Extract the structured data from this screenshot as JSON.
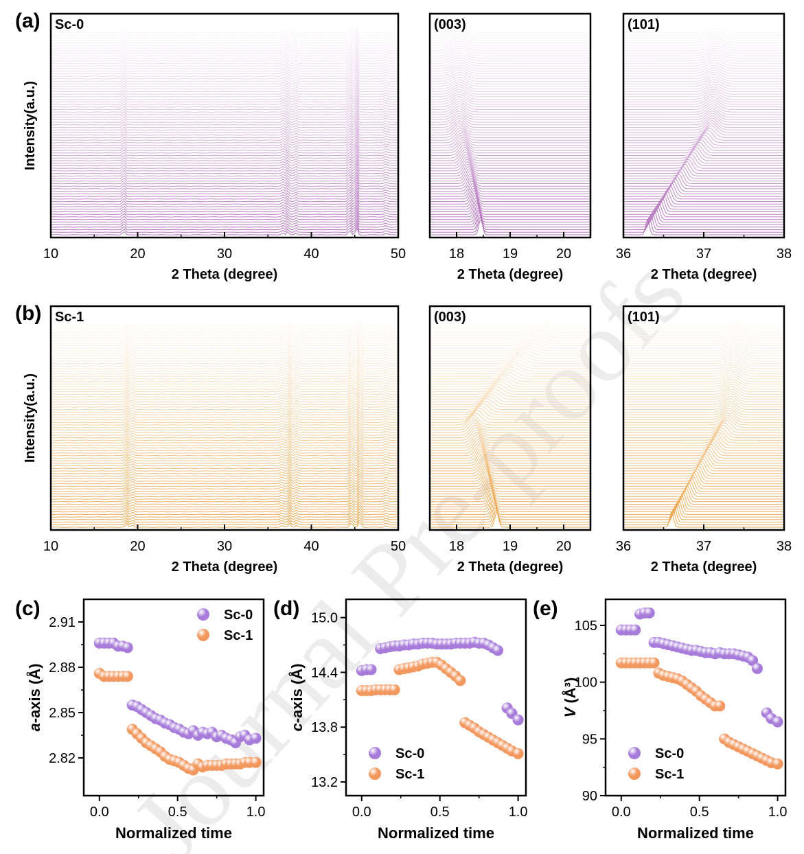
{
  "colors": {
    "sc0_line": "#a559b0",
    "sc1_line": "#e8962e",
    "sc0_marker": "#a77bd9",
    "sc1_marker": "#f2975e"
  },
  "watermark": "Journal Pre-proofs",
  "chart_data": [
    {
      "id": "a-full",
      "type": "line",
      "panel_letter": "(a)",
      "sample": "Sc-0",
      "title": "",
      "xlabel": "2 Theta (degree)",
      "ylabel": "Intensity(a.u.)",
      "xlim": [
        10,
        50
      ],
      "xticks": [
        "10",
        "20",
        "30",
        "40",
        "50"
      ],
      "peaks": [
        [
          18.4,
          6
        ],
        [
          36.7,
          3
        ],
        [
          37.3,
          5
        ],
        [
          38.2,
          3
        ],
        [
          44.4,
          8
        ],
        [
          45.2,
          10
        ],
        [
          48.6,
          3
        ]
      ],
      "n_traces": 80
    },
    {
      "id": "a-003",
      "type": "line",
      "panel_letter": "",
      "sample": "(003)",
      "xlabel": "2 Theta (degree)",
      "ylabel": "",
      "xlim": [
        17.5,
        20.5
      ],
      "xticks": [
        "18",
        "19",
        "20"
      ],
      "peak_start": 18.45,
      "peak_mid": 18.05,
      "peak_end": 18.05,
      "n_traces": 80
    },
    {
      "id": "a-101",
      "type": "line",
      "panel_letter": "",
      "sample": "(101)",
      "xlabel": "2 Theta (degree)",
      "ylabel": "",
      "xlim": [
        36,
        38
      ],
      "xticks": [
        "36",
        "37",
        "38"
      ],
      "peak_start": 36.3,
      "peak_mid": 37.1,
      "peak_end": 37.15,
      "n_traces": 80
    },
    {
      "id": "b-full",
      "type": "line",
      "panel_letter": "(b)",
      "sample": "Sc-1",
      "xlabel": "2 Theta (degree)",
      "ylabel": "Intensity(a.u.)",
      "xlim": [
        10,
        50
      ],
      "xticks": [
        "10",
        "20",
        "30",
        "40",
        "50"
      ],
      "peaks": [
        [
          18.7,
          6
        ],
        [
          19.4,
          4
        ],
        [
          36.6,
          3
        ],
        [
          37.5,
          6
        ],
        [
          38.3,
          3
        ],
        [
          44.6,
          8
        ],
        [
          45.6,
          10
        ],
        [
          48.6,
          3
        ]
      ],
      "n_traces": 80
    },
    {
      "id": "b-003",
      "type": "line",
      "panel_letter": "",
      "sample": "(003)",
      "xlabel": "2 Theta (degree)",
      "ylabel": "",
      "xlim": [
        17.5,
        20.5
      ],
      "xticks": [
        "18",
        "19",
        "20"
      ],
      "peak_start": 18.75,
      "peak_mid": 18.3,
      "peak_end": 19.7,
      "n_traces": 80
    },
    {
      "id": "b-101",
      "type": "line",
      "panel_letter": "",
      "sample": "(101)",
      "xlabel": "2 Theta (degree)",
      "ylabel": "",
      "xlim": [
        36,
        38
      ],
      "xticks": [
        "36",
        "37",
        "38"
      ],
      "peak_start": 36.6,
      "peak_mid": 37.3,
      "peak_end": 37.45,
      "n_traces": 80
    },
    {
      "id": "c",
      "type": "scatter",
      "panel_letter": "(c)",
      "xlabel": "Normalized time",
      "ylabel_italic": "a",
      "ylabel_rest": "-axis (Å)",
      "xlim": [
        -0.1,
        1.05
      ],
      "ylim": [
        2.795,
        2.925
      ],
      "xticks": [
        "0.0",
        "0.5",
        "1.0"
      ],
      "yticks": [
        "2.82",
        "2.85",
        "2.88",
        "2.91"
      ],
      "legend_position": "top-right",
      "series": [
        {
          "name": "Sc-0",
          "x": [
            0,
            0.03,
            0.06,
            0.09,
            0.12,
            0.15,
            0.18,
            0.21,
            0.24,
            0.27,
            0.3,
            0.33,
            0.36,
            0.39,
            0.42,
            0.45,
            0.48,
            0.51,
            0.54,
            0.57,
            0.6,
            0.63,
            0.66,
            0.69,
            0.72,
            0.75,
            0.78,
            0.81,
            0.84,
            0.87,
            0.9,
            0.93,
            0.96,
            1.0
          ],
          "y": [
            2.896,
            2.896,
            2.896,
            2.896,
            2.894,
            2.894,
            2.893,
            2.855,
            2.854,
            2.852,
            2.85,
            2.848,
            2.846,
            2.845,
            2.843,
            2.842,
            2.84,
            2.839,
            2.837,
            2.836,
            2.838,
            2.835,
            2.837,
            2.836,
            2.837,
            2.834,
            2.835,
            2.833,
            2.832,
            2.83,
            2.834,
            2.835,
            2.832,
            2.833
          ]
        },
        {
          "name": "Sc-1",
          "x": [
            0,
            0.03,
            0.06,
            0.09,
            0.12,
            0.15,
            0.18,
            0.21,
            0.24,
            0.27,
            0.3,
            0.33,
            0.36,
            0.39,
            0.42,
            0.45,
            0.48,
            0.51,
            0.54,
            0.57,
            0.6,
            0.63,
            0.66,
            0.69,
            0.72,
            0.75,
            0.78,
            0.81,
            0.84,
            0.87,
            0.9,
            0.93,
            0.96,
            1.0
          ],
          "y": [
            2.876,
            2.874,
            2.874,
            2.874,
            2.874,
            2.874,
            2.874,
            2.839,
            2.836,
            2.833,
            2.83,
            2.828,
            2.826,
            2.824,
            2.821,
            2.819,
            2.818,
            2.817,
            2.815,
            2.813,
            2.812,
            2.816,
            2.814,
            2.815,
            2.815,
            2.815,
            2.815,
            2.816,
            2.816,
            2.816,
            2.816,
            2.817,
            2.817,
            2.817
          ]
        }
      ]
    },
    {
      "id": "d",
      "type": "scatter",
      "panel_letter": "(d)",
      "xlabel": "Normalized time",
      "ylabel_italic": "c",
      "ylabel_rest": "-axis (Å)",
      "xlim": [
        -0.1,
        1.05
      ],
      "ylim": [
        13.05,
        15.2
      ],
      "xticks": [
        "0.0",
        "0.5",
        "1.0"
      ],
      "yticks": [
        "13.2",
        "13.8",
        "14.4",
        "15.0"
      ],
      "legend_position": "bottom-left",
      "series": [
        {
          "name": "Sc-0",
          "x": [
            0,
            0.03,
            0.06,
            0.12,
            0.15,
            0.18,
            0.21,
            0.24,
            0.27,
            0.3,
            0.33,
            0.36,
            0.39,
            0.42,
            0.45,
            0.48,
            0.51,
            0.54,
            0.57,
            0.6,
            0.63,
            0.66,
            0.69,
            0.72,
            0.75,
            0.78,
            0.81,
            0.84,
            0.87,
            0.93,
            0.96,
            1.0
          ],
          "y": [
            14.42,
            14.43,
            14.43,
            14.66,
            14.67,
            14.68,
            14.69,
            14.69,
            14.7,
            14.7,
            14.71,
            14.71,
            14.72,
            14.72,
            14.72,
            14.71,
            14.71,
            14.71,
            14.71,
            14.72,
            14.72,
            14.72,
            14.72,
            14.73,
            14.72,
            14.72,
            14.7,
            14.67,
            14.64,
            14.01,
            13.95,
            13.88
          ]
        },
        {
          "name": "Sc-1",
          "x": [
            0,
            0.03,
            0.06,
            0.09,
            0.12,
            0.15,
            0.18,
            0.21,
            0.24,
            0.27,
            0.3,
            0.33,
            0.36,
            0.39,
            0.42,
            0.45,
            0.48,
            0.51,
            0.54,
            0.57,
            0.6,
            0.63,
            0.66,
            0.69,
            0.72,
            0.75,
            0.78,
            0.81,
            0.84,
            0.87,
            0.9,
            0.93,
            0.96,
            1.0
          ],
          "y": [
            14.2,
            14.2,
            14.2,
            14.21,
            14.21,
            14.21,
            14.21,
            14.21,
            14.43,
            14.44,
            14.45,
            14.46,
            14.47,
            14.49,
            14.5,
            14.51,
            14.51,
            14.48,
            14.44,
            14.4,
            14.36,
            14.31,
            13.85,
            13.82,
            13.79,
            13.75,
            13.72,
            13.69,
            13.66,
            13.63,
            13.6,
            13.57,
            13.54,
            13.51
          ]
        }
      ]
    },
    {
      "id": "e",
      "type": "scatter",
      "panel_letter": "(e)",
      "xlabel": "Normalized time",
      "ylabel_italic": "V",
      "ylabel_rest": " (Å³)",
      "xlim": [
        -0.1,
        1.05
      ],
      "ylim": [
        90,
        107.3
      ],
      "xticks": [
        "0.0",
        "0.5",
        "1.0"
      ],
      "yticks": [
        "90",
        "95",
        "100",
        "105"
      ],
      "legend_position": "bottom-left",
      "series": [
        {
          "name": "Sc-0",
          "x": [
            0,
            0.03,
            0.06,
            0.09,
            0.12,
            0.15,
            0.18,
            0.21,
            0.24,
            0.27,
            0.3,
            0.33,
            0.36,
            0.39,
            0.42,
            0.45,
            0.48,
            0.51,
            0.54,
            0.57,
            0.6,
            0.63,
            0.66,
            0.69,
            0.72,
            0.75,
            0.78,
            0.81,
            0.84,
            0.87,
            0.93,
            0.96,
            1.0
          ],
          "y": [
            104.6,
            104.6,
            104.6,
            104.6,
            106.0,
            106.1,
            106.1,
            103.5,
            103.5,
            103.4,
            103.3,
            103.2,
            103.1,
            103.0,
            102.9,
            102.8,
            102.8,
            102.7,
            102.6,
            102.6,
            102.5,
            102.6,
            102.5,
            102.5,
            102.5,
            102.4,
            102.3,
            102.2,
            101.9,
            101.2,
            97.3,
            96.8,
            96.5
          ]
        },
        {
          "name": "Sc-1",
          "x": [
            0,
            0.03,
            0.06,
            0.09,
            0.12,
            0.15,
            0.18,
            0.21,
            0.24,
            0.27,
            0.3,
            0.33,
            0.36,
            0.39,
            0.42,
            0.45,
            0.48,
            0.51,
            0.54,
            0.57,
            0.6,
            0.63,
            0.66,
            0.69,
            0.72,
            0.75,
            0.78,
            0.81,
            0.84,
            0.87,
            0.9,
            0.93,
            0.96,
            1.0
          ],
          "y": [
            101.7,
            101.7,
            101.7,
            101.7,
            101.7,
            101.7,
            101.7,
            101.7,
            100.8,
            100.6,
            100.5,
            100.4,
            100.3,
            100.1,
            99.8,
            99.5,
            99.2,
            98.8,
            98.5,
            98.2,
            97.9,
            97.9,
            95.0,
            94.7,
            94.5,
            94.3,
            94.1,
            93.9,
            93.7,
            93.5,
            93.3,
            93.1,
            92.9,
            92.8
          ]
        }
      ]
    }
  ]
}
